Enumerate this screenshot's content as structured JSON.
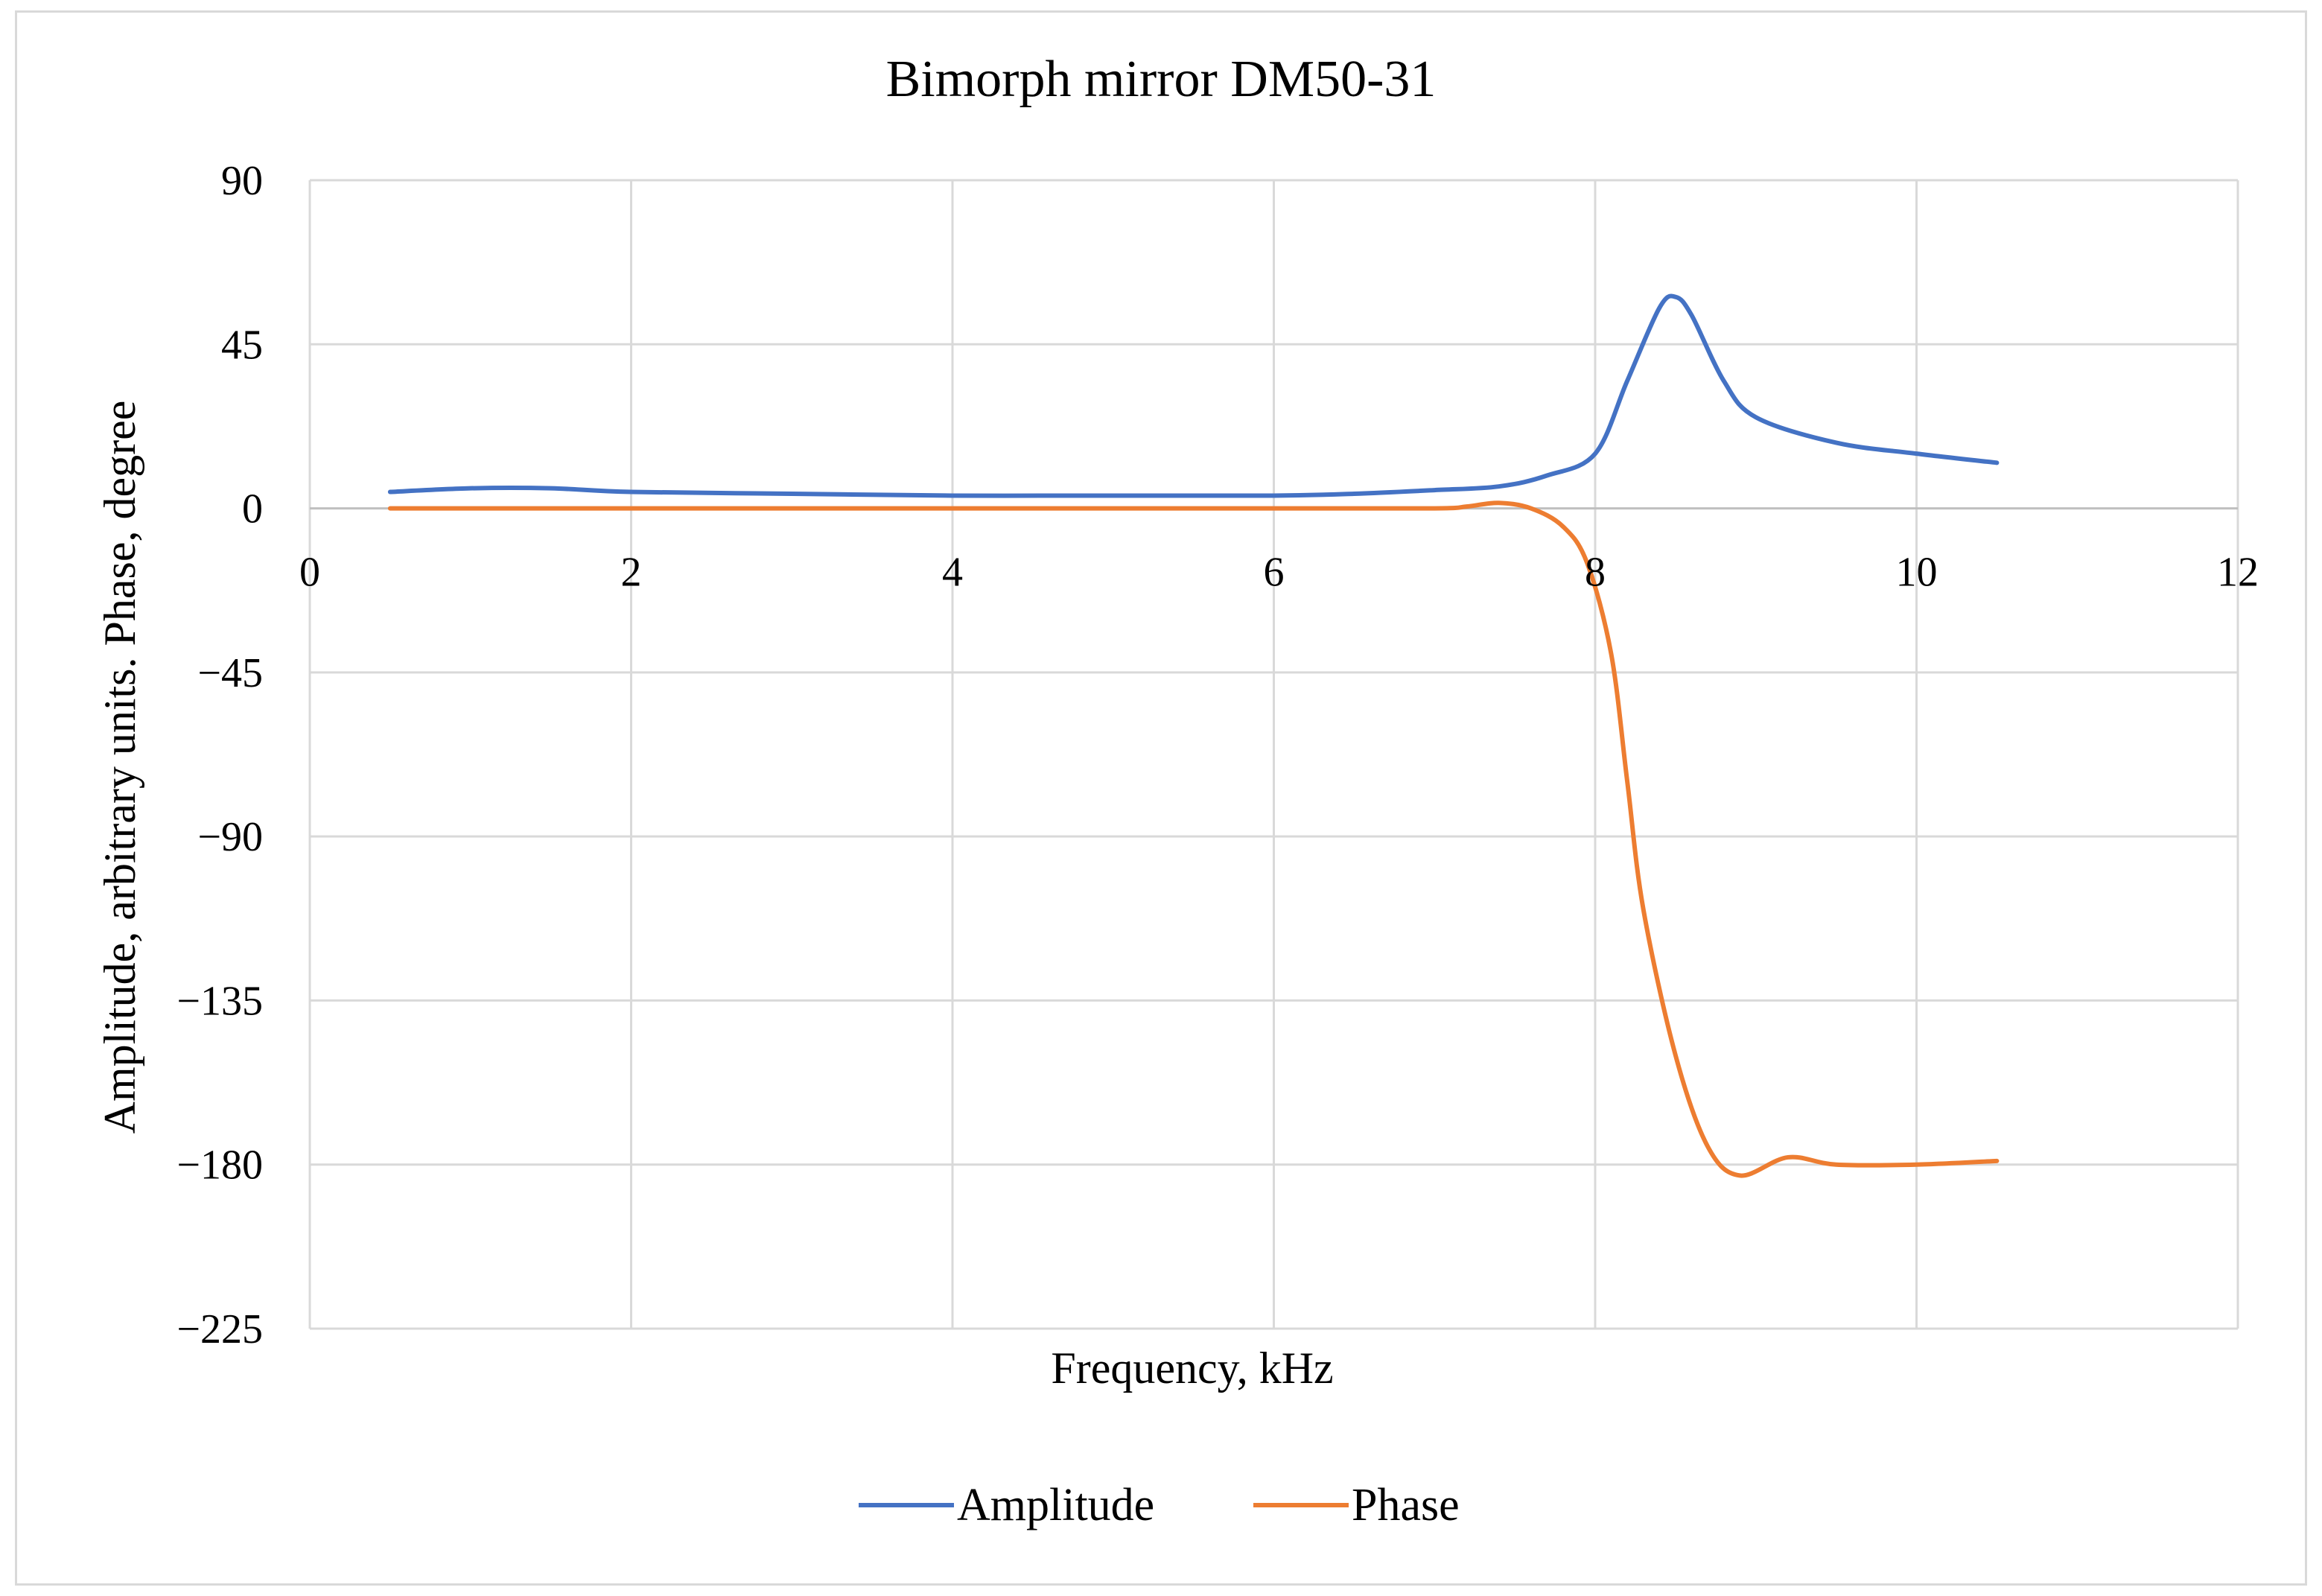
{
  "chart_data": {
    "type": "line",
    "title": "Bimorph mirror DM50-31",
    "xlabel": "Frequency,  kHz",
    "ylabel": "Amplitude,  arbitrary  units.  Phase,  degree",
    "xlim": [
      0,
      12
    ],
    "ylim": [
      -225,
      90
    ],
    "x_ticks": [
      "0",
      "2",
      "4",
      "6",
      "8",
      "10",
      "12"
    ],
    "y_ticks": [
      "90",
      "45",
      "0",
      "-45",
      "-90",
      "-135",
      "-180",
      "-225"
    ],
    "grid": true,
    "legend_position": "bottom",
    "series": [
      {
        "name": "Amplitude",
        "color": "#4472c4",
        "x": [
          0.5,
          1.0,
          1.5,
          2.0,
          3.0,
          4.0,
          5.0,
          6.0,
          6.5,
          7.0,
          7.4,
          7.7,
          8.0,
          8.2,
          8.4,
          8.5,
          8.6,
          8.8,
          9.0,
          9.5,
          10.0,
          10.5
        ],
        "values": [
          4.5,
          5.5,
          5.5,
          4.5,
          4,
          3.5,
          3.5,
          3.5,
          4,
          5,
          6,
          9,
          15,
          35,
          55,
          58,
          53,
          35,
          25,
          18,
          15,
          12.5
        ]
      },
      {
        "name": "Phase",
        "color": "#ed7d31",
        "x": [
          0.5,
          2.0,
          4.0,
          6.0,
          7.0,
          7.2,
          7.4,
          7.6,
          7.8,
          7.95,
          8.1,
          8.2,
          8.3,
          8.5,
          8.7,
          8.9,
          9.2,
          9.5,
          10.0,
          10.5
        ],
        "values": [
          0,
          0,
          0,
          0,
          0,
          0.5,
          1.5,
          0,
          -5,
          -15,
          -40,
          -75,
          -110,
          -150,
          -175,
          -183,
          -178,
          -180,
          -180,
          -179
        ]
      }
    ]
  }
}
